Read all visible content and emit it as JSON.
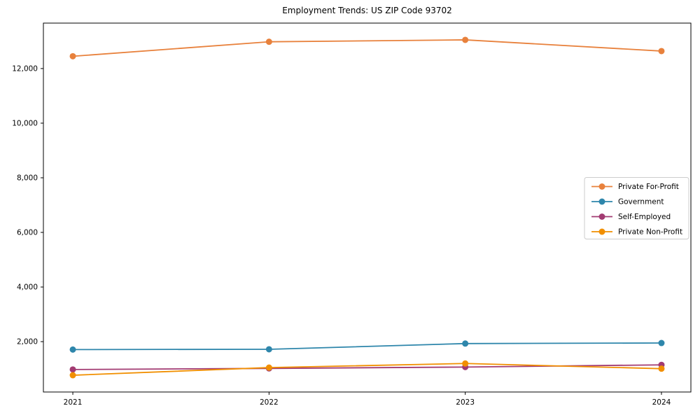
{
  "chart_data": {
    "type": "line",
    "title": "Employment Trends: US ZIP Code 93702",
    "x": [
      2021,
      2022,
      2023,
      2024
    ],
    "x_tick_labels": [
      "2021",
      "2022",
      "2023",
      "2024"
    ],
    "series": [
      {
        "name": "Private For-Profit",
        "color": "#E8813C",
        "values": [
          12450,
          12980,
          13050,
          12640
        ]
      },
      {
        "name": "Government",
        "color": "#2E86AB",
        "values": [
          1710,
          1720,
          1930,
          1950
        ]
      },
      {
        "name": "Self-Employed",
        "color": "#A23B72",
        "values": [
          980,
          1020,
          1070,
          1150
        ]
      },
      {
        "name": "Private Non-Profit",
        "color": "#F18F01",
        "values": [
          770,
          1050,
          1200,
          1010
        ]
      }
    ],
    "xlim": [
      2020.85,
      2024.15
    ],
    "ylim": [
      156,
      13664
    ],
    "yticks": [
      2000,
      4000,
      6000,
      8000,
      10000,
      12000
    ],
    "ytick_labels": [
      "2,000",
      "4,000",
      "6,000",
      "8,000",
      "10,000",
      "12,000"
    ],
    "grid": false,
    "legend_position": "center right",
    "axis_color": "#000000",
    "text_color": "#000000",
    "legend_border_color": "#cccccc",
    "background_color": "#ffffff"
  }
}
